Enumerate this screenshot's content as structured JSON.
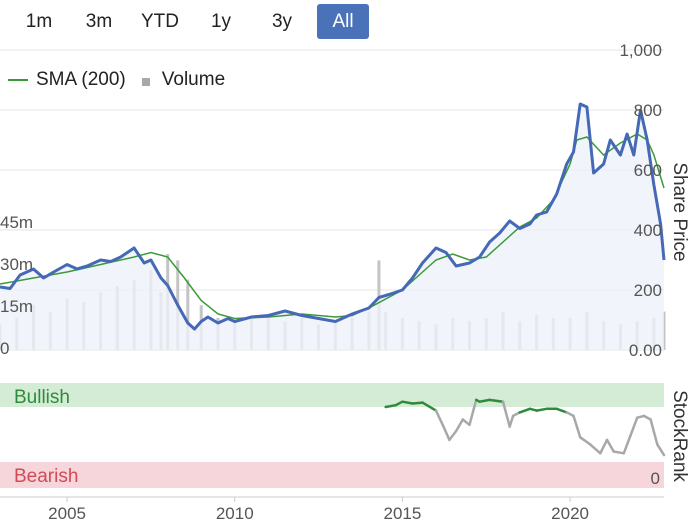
{
  "range_selector": {
    "buttons": [
      {
        "label": "1m",
        "active": false
      },
      {
        "label": "3m",
        "active": false
      },
      {
        "label": "YTD",
        "active": false
      },
      {
        "label": "1y",
        "active": false
      },
      {
        "label": "3y",
        "active": false
      },
      {
        "label": "All",
        "active": true
      }
    ]
  },
  "legend": {
    "sma_label": "SMA (200)",
    "volume_label": "Volume"
  },
  "colors": {
    "price_line": "#4569b6",
    "price_fill": "#eef1f9",
    "sma_line": "#3a9a3a",
    "volume_bar": "#c4c4c4",
    "stockrank_bull": "#2e8b3a",
    "stockrank_neutral": "#a8a8a8",
    "bullish_band": "#d4ecd6",
    "bearish_band": "#f6d6da",
    "active_button": "#4a72b8"
  },
  "chart_data": [
    {
      "type": "line",
      "x_unit": "year",
      "ylabel": "Share Price",
      "ylim": [
        0,
        1000
      ],
      "y_ticks": [
        "1,000",
        "800",
        "600",
        "400",
        "200",
        "0.00"
      ],
      "volume_ticks": [
        "45m",
        "30m",
        "15m",
        "0"
      ],
      "volume_ylim": [
        0,
        60
      ],
      "x_ticks": [
        "2005",
        "2010",
        "2015",
        "2020"
      ],
      "xlim": [
        2003.0,
        2022.8
      ],
      "grid": true,
      "legend_placement": "top-left",
      "series": [
        {
          "name": "Share Price",
          "x": [
            2003.0,
            2003.3,
            2003.6,
            2004.0,
            2004.3,
            2004.6,
            2005.0,
            2005.3,
            2005.6,
            2006.0,
            2006.3,
            2006.6,
            2007.0,
            2007.3,
            2007.5,
            2007.8,
            2008.0,
            2008.3,
            2008.6,
            2008.8,
            2009.0,
            2009.2,
            2009.5,
            2009.8,
            2010.0,
            2010.5,
            2011.0,
            2011.5,
            2012.0,
            2012.5,
            2013.0,
            2013.5,
            2014.0,
            2014.3,
            2014.6,
            2015.0,
            2015.3,
            2015.6,
            2016.0,
            2016.3,
            2016.6,
            2017.0,
            2017.3,
            2017.6,
            2017.9,
            2018.2,
            2018.5,
            2018.8,
            2019.0,
            2019.3,
            2019.6,
            2019.9,
            2020.1,
            2020.3,
            2020.5,
            2020.7,
            2021.0,
            2021.2,
            2021.5,
            2021.7,
            2021.9,
            2022.1,
            2022.3,
            2022.5,
            2022.7,
            2022.8
          ],
          "values": [
            210,
            205,
            250,
            270,
            240,
            260,
            285,
            270,
            280,
            300,
            295,
            310,
            340,
            290,
            300,
            240,
            215,
            150,
            90,
            70,
            95,
            110,
            90,
            105,
            95,
            110,
            115,
            130,
            115,
            105,
            95,
            120,
            140,
            175,
            185,
            200,
            240,
            290,
            340,
            325,
            280,
            290,
            310,
            360,
            390,
            430,
            405,
            420,
            450,
            460,
            520,
            620,
            660,
            820,
            810,
            590,
            620,
            700,
            650,
            720,
            650,
            800,
            700,
            550,
            420,
            300
          ]
        },
        {
          "name": "SMA (200)",
          "x": [
            2003.0,
            2004.0,
            2005.0,
            2006.0,
            2007.0,
            2007.5,
            2008.0,
            2008.5,
            2009.0,
            2009.5,
            2010.0,
            2011.0,
            2012.0,
            2013.0,
            2013.5,
            2014.0,
            2014.5,
            2015.0,
            2015.5,
            2016.0,
            2016.5,
            2017.0,
            2017.5,
            2018.0,
            2018.5,
            2019.0,
            2019.5,
            2020.0,
            2020.2,
            2020.5,
            2021.0,
            2021.5,
            2022.0,
            2022.3,
            2022.5,
            2022.8
          ],
          "values": [
            220,
            240,
            260,
            285,
            310,
            325,
            310,
            240,
            165,
            120,
            105,
            110,
            120,
            110,
            115,
            140,
            170,
            200,
            250,
            300,
            320,
            300,
            310,
            360,
            410,
            440,
            500,
            620,
            700,
            710,
            650,
            690,
            720,
            700,
            650,
            540
          ]
        }
      ],
      "volume": {
        "x": [
          2003.0,
          2003.5,
          2004.0,
          2004.5,
          2005.0,
          2005.5,
          2006.0,
          2006.5,
          2007.0,
          2007.5,
          2007.8,
          2008.0,
          2008.3,
          2008.6,
          2009.0,
          2009.5,
          2010.0,
          2010.5,
          2011.0,
          2011.5,
          2012.0,
          2012.5,
          2013.0,
          2013.5,
          2014.0,
          2014.3,
          2014.5,
          2015.0,
          2015.5,
          2016.0,
          2016.5,
          2017.0,
          2017.5,
          2018.0,
          2018.5,
          2019.0,
          2019.5,
          2020.0,
          2020.5,
          2021.0,
          2021.5,
          2022.0,
          2022.5,
          2022.8
        ],
        "values": [
          8,
          10,
          14,
          12,
          16,
          15,
          18,
          20,
          22,
          25,
          18,
          30,
          28,
          22,
          14,
          10,
          9,
          10,
          11,
          9,
          10,
          8,
          9,
          10,
          12,
          28,
          12,
          10,
          9,
          8,
          10,
          9,
          10,
          12,
          9,
          11,
          10,
          10,
          12,
          9,
          8,
          9,
          10,
          12
        ]
      }
    },
    {
      "type": "line",
      "ylabel": "StockRank",
      "y_ticks": [
        "0"
      ],
      "ylim": [
        0,
        100
      ],
      "bands": [
        "Bullish",
        "Bearish"
      ],
      "series": [
        {
          "name": "StockRank",
          "x": [
            2014.5,
            2014.8,
            2015.0,
            2015.3,
            2015.6,
            2016.0,
            2016.2,
            2016.4,
            2016.6,
            2016.8,
            2017.0,
            2017.2,
            2017.3,
            2017.6,
            2018.0,
            2018.2,
            2018.3,
            2018.5,
            2018.8,
            2019.0,
            2019.3,
            2019.6,
            2019.9,
            2020.1,
            2020.3,
            2020.6,
            2020.9,
            2021.1,
            2021.3,
            2021.6,
            2021.8,
            2022.0,
            2022.2,
            2022.4,
            2022.6,
            2022.8
          ],
          "values": [
            82,
            84,
            88,
            86,
            87,
            78,
            62,
            45,
            55,
            68,
            62,
            90,
            88,
            90,
            88,
            60,
            72,
            76,
            80,
            78,
            80,
            80,
            76,
            72,
            48,
            40,
            30,
            45,
            32,
            30,
            50,
            70,
            72,
            68,
            40,
            28
          ]
        }
      ]
    }
  ]
}
